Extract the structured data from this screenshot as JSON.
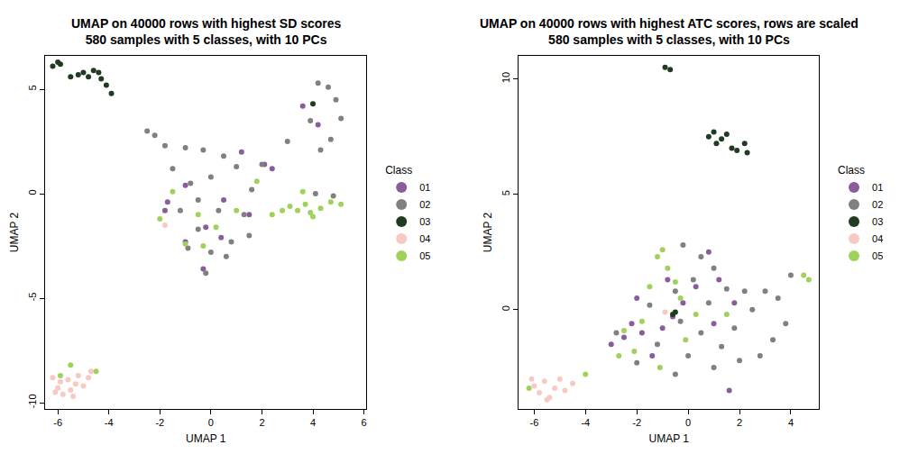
{
  "chart_data": [
    {
      "type": "scatter",
      "title": [
        "UMAP on 40000 rows with highest SD scores",
        "580 samples with 5 classes, with 10 PCs"
      ],
      "xlabel": "UMAP 1",
      "ylabel": "UMAP 2",
      "legend_title": "Class",
      "legend": "right",
      "xlim": [
        -6.5,
        6.1
      ],
      "xticks": [
        -6,
        -4,
        -2,
        0,
        2,
        4,
        6
      ],
      "ylim": [
        -10.3,
        6.6
      ],
      "yticks": [
        -10,
        -5,
        0,
        5
      ],
      "marker": "circle",
      "series": [
        {
          "name": "01",
          "color": "#8a5c9b",
          "x": [
            -1.8,
            -1.7,
            -1.0,
            0.5,
            2.1,
            2.4,
            3.6,
            4.2,
            -1.0,
            -0.2,
            0.4,
            -0.3,
            1.2,
            1.5
          ],
          "y": [
            -0.8,
            -0.4,
            0.4,
            -0.3,
            1.4,
            1.2,
            4.2,
            3.3,
            -2.3,
            -1.6,
            -2.1,
            -3.6,
            2.0,
            -1.0
          ]
        },
        {
          "name": "02",
          "color": "#808080",
          "x": [
            -2.5,
            -2.2,
            -1.8,
            -1.0,
            -0.3,
            0.5,
            1.0,
            -1.5,
            -0.8,
            0.0,
            -0.5,
            0.3,
            1.3,
            0.8,
            0.0,
            -0.5,
            1.5,
            0.6,
            -0.2,
            -1.2,
            2.0,
            3.0,
            4.2,
            4.6,
            4.9,
            5.1,
            4.7,
            4.3,
            3.9,
            4.1,
            4.8,
            -0.9,
            1.6
          ],
          "y": [
            3.0,
            2.8,
            2.3,
            2.2,
            2.1,
            1.8,
            1.3,
            1.2,
            0.5,
            0.8,
            -0.3,
            -0.8,
            -1.0,
            -2.3,
            -2.8,
            -1.7,
            -2.0,
            -3.0,
            -3.8,
            -0.8,
            1.4,
            2.5,
            5.3,
            5.1,
            4.5,
            3.6,
            2.6,
            2.1,
            3.5,
            0.0,
            -0.1,
            -2.6,
            0.2
          ]
        },
        {
          "name": "03",
          "color": "#213b23",
          "x": [
            -6.2,
            -6.0,
            -5.9,
            -5.5,
            -5.2,
            -5.0,
            -4.8,
            -4.6,
            -4.4,
            -4.3,
            -4.1,
            -3.9,
            4.0
          ],
          "y": [
            6.1,
            6.3,
            6.2,
            5.6,
            5.7,
            5.8,
            5.6,
            5.9,
            5.8,
            5.5,
            5.2,
            4.8,
            4.3
          ]
        },
        {
          "name": "04",
          "color": "#f8c9c3",
          "x": [
            -6.2,
            -6.0,
            -5.8,
            -5.9,
            -5.6,
            -5.5,
            -5.3,
            -5.2,
            -5.0,
            -4.8,
            -4.7,
            -5.4,
            -6.1,
            -1.8
          ],
          "y": [
            -8.8,
            -9.3,
            -9.6,
            -9.0,
            -8.9,
            -9.4,
            -9.1,
            -8.7,
            -9.2,
            -8.8,
            -8.5,
            -9.7,
            -9.5,
            -1.5
          ]
        },
        {
          "name": "05",
          "color": "#9ed25a",
          "x": [
            -5.5,
            -4.5,
            -5.9,
            2.4,
            2.8,
            3.1,
            3.4,
            3.7,
            3.9,
            4.3,
            4.7,
            5.1,
            3.6,
            4.0,
            1.8,
            -2.0,
            -1.5,
            -0.5,
            0.2,
            1.0,
            -0.3,
            -1.0
          ],
          "y": [
            -8.2,
            -8.5,
            -8.7,
            -1.0,
            -0.8,
            -0.6,
            -0.8,
            -0.5,
            -0.9,
            -0.7,
            -0.4,
            -0.5,
            0.1,
            -1.1,
            0.6,
            -1.2,
            0.1,
            -1.0,
            -1.6,
            -0.8,
            -2.5,
            -2.4
          ]
        }
      ]
    },
    {
      "type": "scatter",
      "title": [
        "UMAP on 40000 rows with highest ATC scores, rows are scaled",
        "580 samples with 5 classes, with 10 PCs"
      ],
      "xlabel": "UMAP 1",
      "ylabel": "UMAP 2",
      "legend_title": "Class",
      "legend": "right",
      "xlim": [
        -6.6,
        5.1
      ],
      "xticks": [
        -6,
        -4,
        -2,
        0,
        2,
        4
      ],
      "ylim": [
        -4.3,
        11.0
      ],
      "yticks": [
        0,
        5,
        10
      ],
      "marker": "circle",
      "series": [
        {
          "name": "01",
          "color": "#8a5c9b",
          "x": [
            -2.5,
            -2.2,
            -1.8,
            -1.4,
            -1.0,
            -0.6,
            -0.2,
            0.3,
            0.8,
            1.2,
            1.8,
            1.0,
            1.6,
            -2.0,
            -0.8,
            -3.0
          ],
          "y": [
            -1.2,
            -0.6,
            -1.0,
            -2.0,
            -0.8,
            -0.3,
            0.3,
            1.0,
            2.5,
            1.3,
            0.3,
            -0.6,
            -3.5,
            0.5,
            1.3,
            -1.5
          ]
        },
        {
          "name": "02",
          "color": "#808080",
          "x": [
            -0.2,
            0.5,
            1.0,
            0.2,
            -0.5,
            0.8,
            1.5,
            2.2,
            3.0,
            3.5,
            4.0,
            2.5,
            1.8,
            0.5,
            0.0,
            -0.5,
            -1.2,
            -2.0,
            -2.8,
            1.0,
            2.0,
            2.8,
            3.3,
            -0.3,
            1.3,
            3.8,
            -1.5
          ],
          "y": [
            2.8,
            2.3,
            1.8,
            1.3,
            0.8,
            0.3,
            0.9,
            0.8,
            0.8,
            0.5,
            1.5,
            0.0,
            -0.8,
            -1.0,
            -2.0,
            -2.8,
            -1.5,
            -2.3,
            -1.0,
            -2.5,
            -2.2,
            -2.0,
            -1.3,
            -0.5,
            -1.6,
            -0.6,
            0.2
          ]
        },
        {
          "name": "03",
          "color": "#213b23",
          "x": [
            -0.9,
            -0.7,
            0.8,
            1.0,
            1.3,
            1.5,
            1.7,
            1.9,
            2.2,
            2.3,
            1.1,
            -0.5,
            -0.6
          ],
          "y": [
            10.5,
            10.4,
            7.5,
            7.7,
            7.4,
            7.6,
            7.0,
            6.9,
            7.2,
            6.8,
            7.2,
            -0.1,
            -0.2
          ]
        },
        {
          "name": "04",
          "color": "#f8c9c3",
          "x": [
            -6.0,
            -5.8,
            -5.6,
            -5.4,
            -5.2,
            -5.0,
            -4.8,
            -4.5,
            -5.5,
            -6.1,
            -0.9
          ],
          "y": [
            -3.3,
            -3.6,
            -3.1,
            -3.8,
            -3.4,
            -3.0,
            -3.5,
            -3.2,
            -3.9,
            -3.0,
            -0.1
          ]
        },
        {
          "name": "05",
          "color": "#9ed25a",
          "x": [
            -4.0,
            -6.2,
            -1.0,
            -1.2,
            -0.8,
            -0.5,
            -1.5,
            -0.3,
            -2.1,
            -2.7,
            -1.8,
            -0.1,
            0.3,
            1.5,
            4.5,
            4.7,
            -1.1,
            -2.5
          ],
          "y": [
            -2.8,
            -3.4,
            2.6,
            2.3,
            1.8,
            1.2,
            1.0,
            0.5,
            -1.8,
            -2.0,
            -0.5,
            -1.3,
            -0.2,
            -0.2,
            1.5,
            1.3,
            -2.5,
            -0.9
          ]
        }
      ]
    }
  ]
}
